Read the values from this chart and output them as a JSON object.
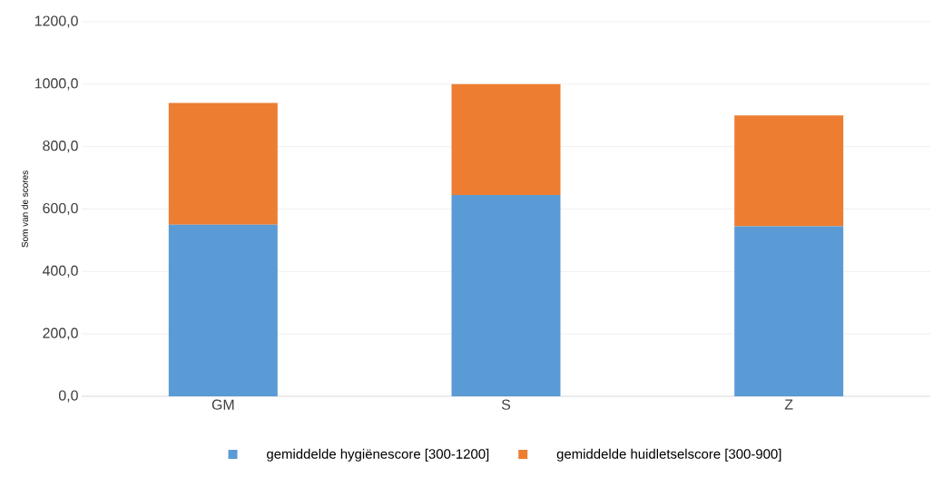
{
  "chart_data": {
    "type": "bar",
    "stacked": true,
    "ylabel": "Som van de scores",
    "categories": [
      "GM",
      "S",
      "Z"
    ],
    "series": [
      {
        "name": "gemiddelde hygiënescore [300-1200]",
        "color": "#5b9bd5",
        "values": [
          550,
          645,
          545
        ]
      },
      {
        "name": "gemiddelde huidletselscore [300-900]",
        "color": "#ed7d31",
        "values": [
          390,
          355,
          355
        ]
      }
    ],
    "ylim": [
      0,
      1200
    ],
    "yticks": [
      {
        "value": 0,
        "label": "0,0"
      },
      {
        "value": 200,
        "label": "200,0"
      },
      {
        "value": 400,
        "label": "400,0"
      },
      {
        "value": 600,
        "label": "600,0"
      },
      {
        "value": 800,
        "label": "800,0"
      },
      {
        "value": 1000,
        "label": "1000,0"
      },
      {
        "value": 1200,
        "label": "1200,0"
      }
    ],
    "grid": "y",
    "legend": "bottom"
  }
}
